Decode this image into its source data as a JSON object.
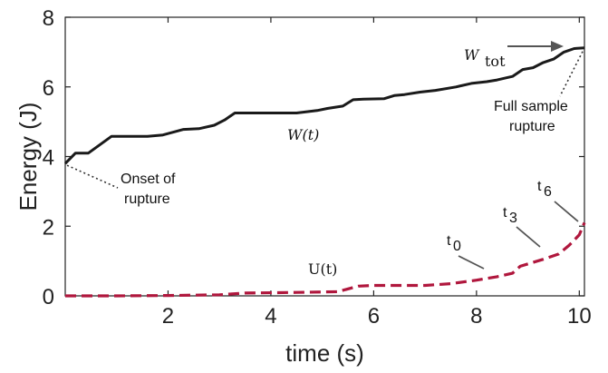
{
  "chart_data": {
    "type": "line",
    "xlabel": "time (s)",
    "ylabel": "Energy (J)",
    "xlim": [
      0,
      10.1
    ],
    "ylim": [
      0,
      8
    ],
    "xticks": [
      "2",
      "4",
      "6",
      "8",
      "10"
    ],
    "yticks": [
      "0",
      "2",
      "4",
      "6",
      "8"
    ],
    "series": [
      {
        "name": "W(t)",
        "color": "#1a1a1a",
        "style": "solid",
        "x": [
          0,
          0.2,
          0.45,
          0.9,
          1.2,
          1.6,
          1.9,
          2.3,
          2.6,
          2.9,
          3.1,
          3.3,
          3.6,
          4.0,
          4.5,
          4.9,
          5.1,
          5.4,
          5.6,
          5.8,
          6.2,
          6.4,
          6.6,
          6.9,
          7.2,
          7.6,
          7.9,
          8.2,
          8.4,
          8.7,
          8.9,
          9.1,
          9.3,
          9.5,
          9.7,
          9.9,
          10.1
        ],
        "values": [
          3.8,
          4.1,
          4.1,
          4.58,
          4.58,
          4.58,
          4.62,
          4.78,
          4.8,
          4.9,
          5.05,
          5.25,
          5.25,
          5.25,
          5.25,
          5.32,
          5.38,
          5.45,
          5.63,
          5.65,
          5.66,
          5.75,
          5.78,
          5.85,
          5.9,
          6.0,
          6.1,
          6.15,
          6.2,
          6.3,
          6.5,
          6.55,
          6.7,
          6.8,
          7.0,
          7.1,
          7.12
        ]
      },
      {
        "name": "U(t)",
        "color": "#b0173d",
        "style": "dashed",
        "x": [
          0,
          1,
          2,
          3,
          3.5,
          4.5,
          5.3,
          5.7,
          6,
          7,
          7.5,
          8,
          8.4,
          8.7,
          8.85,
          9.3,
          9.6,
          9.8,
          10.0,
          10.1
        ],
        "values": [
          0.0,
          0.0,
          0.01,
          0.03,
          0.08,
          0.1,
          0.12,
          0.28,
          0.3,
          0.3,
          0.35,
          0.45,
          0.55,
          0.65,
          0.85,
          1.05,
          1.2,
          1.45,
          1.75,
          2.1
        ]
      }
    ],
    "annotations": {
      "w_tot": "W",
      "w_tot_sub": "tot",
      "onset": [
        "Onset of",
        "rupture"
      ],
      "full": [
        "Full sample",
        "rupture"
      ],
      "w_label": "W(t)",
      "u_label": "U(t)",
      "t0": "t",
      "t0_sub": "0",
      "t3": "t",
      "t3_sub": "3",
      "t6": "t",
      "t6_sub": "6"
    },
    "grid": false,
    "legend": "none"
  }
}
